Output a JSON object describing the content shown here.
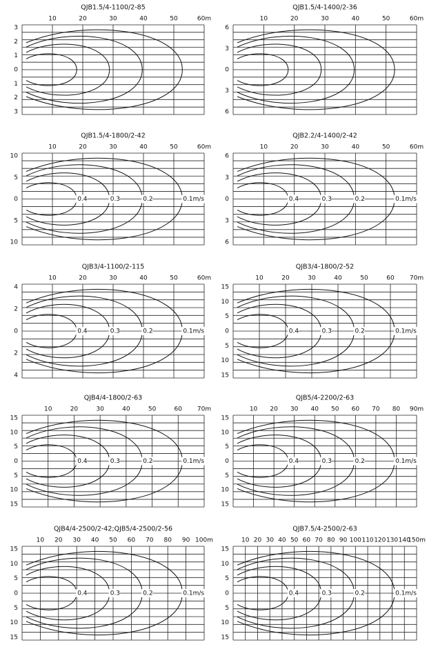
{
  "panels": [
    {
      "title": "QJB1.5/4-1100/2-85",
      "x_labels": [
        "10",
        "20",
        "30",
        "40",
        "50",
        "60m"
      ],
      "y_labels": [
        "3",
        "2",
        "1",
        "0",
        "1",
        "2",
        "3"
      ],
      "contour_labels": []
    },
    {
      "title": "QJB1.5/4-1400/2-36",
      "x_labels": [
        "10",
        "20",
        "30",
        "40",
        "50",
        "60m"
      ],
      "y_labels": [
        "6",
        "3",
        "0",
        "3",
        "6"
      ],
      "contour_labels": []
    },
    {
      "title": "QJB1.5/4-1800/2-42",
      "x_labels": [
        "10",
        "20",
        "30",
        "40",
        "50",
        "60m"
      ],
      "y_labels": [
        "10",
        "5",
        "0",
        "5",
        "10"
      ],
      "contour_labels": [
        "0.4",
        "0.3",
        "0.2",
        "0.1m/s"
      ]
    },
    {
      "title": "QJB2.2/4-1400/2-42",
      "x_labels": [
        "10",
        "20",
        "30",
        "40",
        "50",
        "60m"
      ],
      "y_labels": [
        "6",
        "3",
        "0",
        "3",
        "6"
      ],
      "contour_labels": [
        "0.4",
        "0.3",
        "0.2",
        "0.1m/s"
      ]
    },
    {
      "title": "QJB3/4-1100/2-115",
      "x_labels": [
        "10",
        "20",
        "30",
        "40",
        "50",
        "60m"
      ],
      "y_labels": [
        "4",
        "2",
        "0",
        "2",
        "4"
      ],
      "contour_labels": [
        "0.4",
        "0.3",
        "0.2",
        "0.1m/s"
      ]
    },
    {
      "title": "QJB3/4-1800/2-52",
      "x_labels": [
        "10",
        "20",
        "30",
        "40",
        "50",
        "60",
        "70m"
      ],
      "y_labels": [
        "15",
        "10",
        "5",
        "0",
        "5",
        "10",
        "15"
      ],
      "contour_labels": [
        "0.4",
        "0.3",
        "0.2",
        "0.1m/s"
      ]
    },
    {
      "title": "QJB4/4-1800/2-63",
      "x_labels": [
        "10",
        "20",
        "30",
        "40",
        "50",
        "60",
        "70m"
      ],
      "y_labels": [
        "15",
        "10",
        "5",
        "0",
        "5",
        "10",
        "15"
      ],
      "contour_labels": [
        "0.4",
        "0.3",
        "0.2",
        "0.1m/s"
      ]
    },
    {
      "title": "QJB5/4-2200/2-63",
      "x_labels": [
        "10",
        "20",
        "30",
        "40",
        "50",
        "60",
        "70",
        "80",
        "90m"
      ],
      "y_labels": [
        "15",
        "10",
        "5",
        "0",
        "5",
        "10",
        "15"
      ],
      "contour_labels": [
        "0.4",
        "0.3",
        "0.2",
        "0.1m/s"
      ]
    },
    {
      "title": "QJB4/4-2500/2-42;QJB5/4-2500/2-56",
      "x_labels": [
        "10",
        "20",
        "30",
        "40",
        "50",
        "60",
        "70",
        "80",
        "90",
        "100m"
      ],
      "y_labels": [
        "15",
        "10",
        "5",
        "0",
        "5",
        "10",
        "15"
      ],
      "contour_labels": [
        "0.4",
        "0.3",
        "0.2",
        "0.1m/s"
      ]
    },
    {
      "title": "QJB7.5/4-2500/2-63",
      "x_labels": [
        "10",
        "20",
        "30",
        "40",
        "50",
        "60",
        "70",
        "80",
        "90",
        "100",
        "110",
        "120",
        "130",
        "140",
        "150m"
      ],
      "y_labels": [
        "15",
        "10",
        "5",
        "0",
        "5",
        "10",
        "15"
      ],
      "contour_labels": [
        "0.4",
        "0.3",
        "0.2",
        "0.1m/s"
      ]
    }
  ]
}
